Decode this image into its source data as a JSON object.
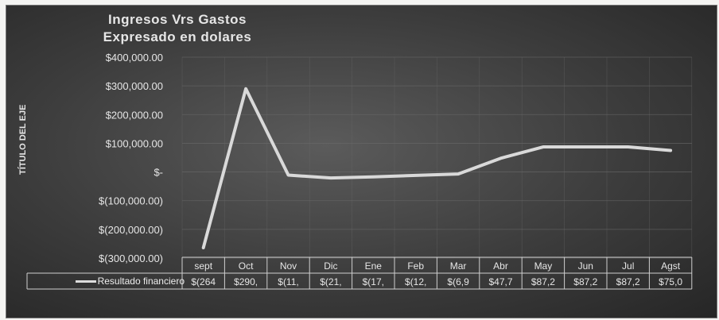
{
  "chart_data": {
    "type": "line",
    "title": "Ingresos Vrs Gastos",
    "subtitle": "Expresado en dolares",
    "xlabel": "",
    "ylabel": "TÍTULO DEL EJE",
    "categories": [
      "sept",
      "Oct",
      "Nov",
      "Dic",
      "Ene",
      "Feb",
      "Mar",
      "Abr",
      "May",
      "Jun",
      "Jul",
      "Agst"
    ],
    "series": [
      {
        "name": "Resultado financiero",
        "values": [
          -264000,
          290000,
          -11000,
          -21000,
          -17000,
          -12000,
          -6900,
          47700,
          87200,
          87200,
          87200,
          75000
        ],
        "table_labels": [
          "$(264",
          "$290,",
          "$(11,",
          "$(21,",
          "$(17,",
          "$(12,",
          "$(6,9",
          "$47,7",
          "$87,2",
          "$87,2",
          "$87,2",
          "$75,0"
        ]
      }
    ],
    "ylim": [
      -300000,
      400000
    ],
    "yticks": [
      400000,
      300000,
      200000,
      100000,
      0,
      -100000,
      -200000,
      -300000
    ],
    "ytick_labels": [
      "$400,000.00",
      "$300,000.00",
      "$200,000.00",
      "$100,000.00",
      "$-",
      "$(100,000.00)",
      "$(200,000.00)",
      "$(300,000.00)"
    ],
    "grid": true,
    "legend": "data-table",
    "colors": {
      "line": "#d9d9d9",
      "background": "#444444",
      "text": "#e6e6e6",
      "grid": "#6a6a6a"
    }
  }
}
